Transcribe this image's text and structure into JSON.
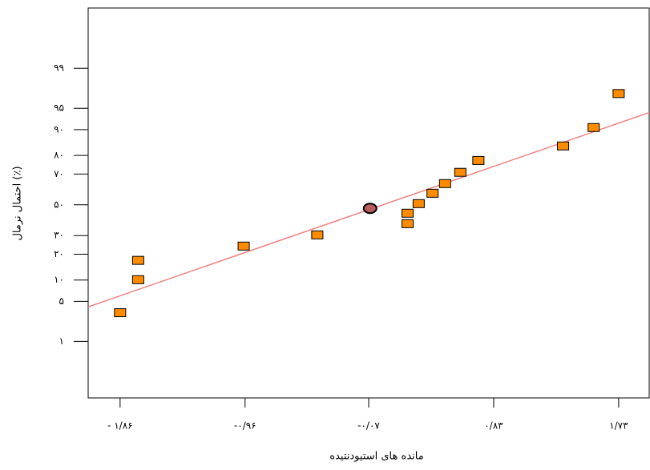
{
  "chart_data": {
    "type": "scatter",
    "x_label": "مانده های استیودنتیده",
    "y_label": "احتمال نرمال (٪)",
    "y_scale": "normal-probability",
    "xlim": [
      -2.09,
      1.95
    ],
    "ylim": [
      0.05,
      99.96
    ],
    "xticks": [
      {
        "value": -1.86,
        "label": "- ۱/۸۶"
      },
      {
        "value": -0.96,
        "label": "-۰/۹۶"
      },
      {
        "value": -0.07,
        "label": "-۰/۰۷"
      },
      {
        "value": 0.83,
        "label": "۰/۸۳"
      },
      {
        "value": 1.73,
        "label": "۱/۷۳"
      }
    ],
    "yticks": [
      {
        "value": 1,
        "label": "۱"
      },
      {
        "value": 5,
        "label": "۵"
      },
      {
        "value": 10,
        "label": "۱۰"
      },
      {
        "value": 20,
        "label": "۲۰"
      },
      {
        "value": 30,
        "label": "۳۰"
      },
      {
        "value": 50,
        "label": "۵۰"
      },
      {
        "value": 70,
        "label": "۷۰"
      },
      {
        "value": 80,
        "label": "۸۰"
      },
      {
        "value": 90,
        "label": "۹۰"
      },
      {
        "value": 95,
        "label": "۹۵"
      },
      {
        "value": 99,
        "label": "۹۹"
      }
    ],
    "color": "#ff8c00",
    "x": [
      -1.86,
      -1.73,
      -1.73,
      -0.97,
      -0.44,
      0.21,
      0.21,
      0.29,
      0.39,
      0.48,
      0.59,
      0.72,
      1.33,
      1.55,
      1.73
    ],
    "values": [
      3.3,
      10.1,
      17.2,
      24.1,
      30.4,
      37.4,
      44.3,
      50.8,
      57.8,
      64.1,
      71.0,
      77.5,
      84.2,
      90.6,
      97.1
    ],
    "highlight": {
      "x": -0.06,
      "y": 47.6,
      "color": "#b85c5c"
    },
    "fit_line": {
      "x": [
        -2.09,
        1.95
      ],
      "y": [
        4.1,
        94.2
      ],
      "color": "#f08080"
    }
  }
}
